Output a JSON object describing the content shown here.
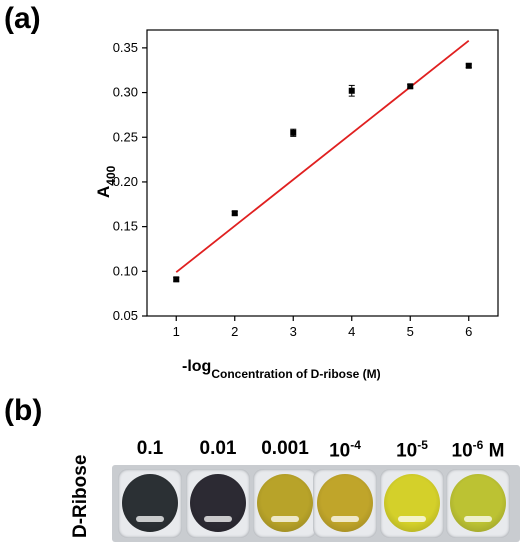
{
  "panels": {
    "a": "(a)",
    "b": "(b)"
  },
  "chart_data": {
    "type": "scatter",
    "title": "",
    "ylabel_main": "A",
    "ylabel_sub": "400",
    "xlabel_main": "-log",
    "xlabel_sub": "Concentration of D-ribose (M)",
    "xlim": [
      0.5,
      6.5
    ],
    "ylim": [
      0.05,
      0.37
    ],
    "xticks": [
      1,
      2,
      3,
      4,
      5,
      6
    ],
    "yticks": [
      0.05,
      0.1,
      0.15,
      0.2,
      0.25,
      0.3,
      0.35
    ],
    "ytick_labels": [
      "0.05",
      "0.10",
      "0.15",
      "0.20",
      "0.25",
      "0.30",
      "0.35"
    ],
    "grid": false,
    "points": [
      {
        "x": 1,
        "y": 0.091,
        "err": 0.002
      },
      {
        "x": 2,
        "y": 0.165,
        "err": 0.002
      },
      {
        "x": 3,
        "y": 0.255,
        "err": 0.004
      },
      {
        "x": 4,
        "y": 0.302,
        "err": 0.006
      },
      {
        "x": 5,
        "y": 0.307,
        "err": 0.002
      },
      {
        "x": 6,
        "y": 0.33,
        "err": 0.002
      }
    ],
    "fit_line": {
      "x": [
        1,
        6
      ],
      "y": [
        0.099,
        0.358
      ],
      "color": "#e02020"
    },
    "marker_color": "#000000"
  },
  "photo": {
    "side_label": "D-Ribose",
    "concentrations": [
      {
        "base": "0.1",
        "exp": "",
        "unit": ""
      },
      {
        "base": "0.01",
        "exp": "",
        "unit": ""
      },
      {
        "base": "0.001",
        "exp": "",
        "unit": ""
      },
      {
        "base": "10",
        "exp": "-4",
        "unit": ""
      },
      {
        "base": "10",
        "exp": "-5",
        "unit": ""
      },
      {
        "base": "10",
        "exp": "-6",
        "unit": " M"
      }
    ],
    "well_colors": [
      "#2b3034",
      "#2c2a33",
      "#b8a329",
      "#c0a52a",
      "#d4d02a",
      "#bcc233"
    ]
  }
}
